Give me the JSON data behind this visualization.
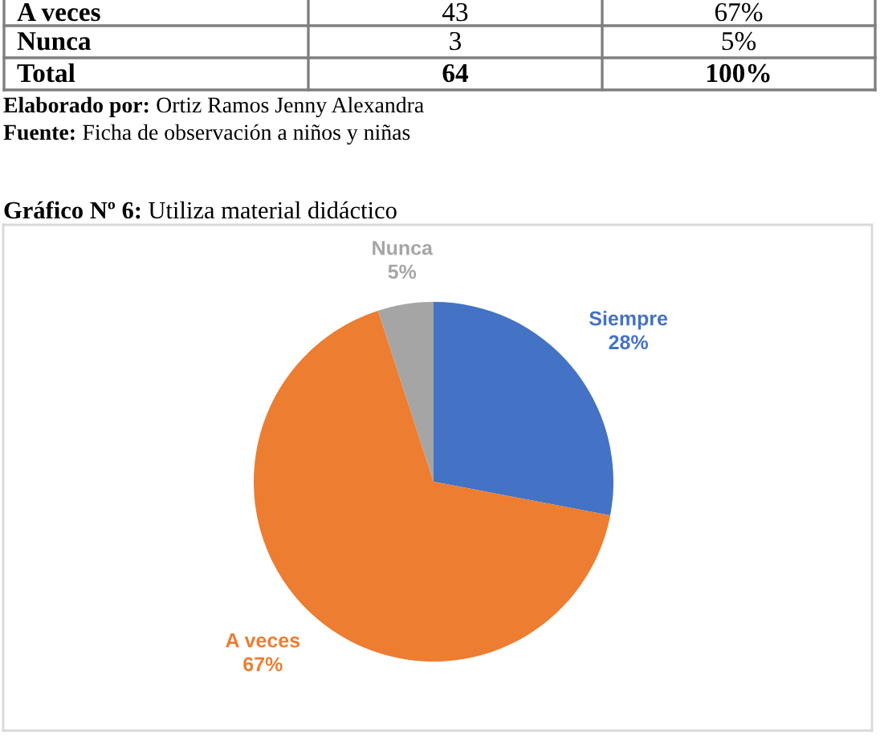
{
  "chart_data": {
    "type": "pie",
    "title": "Gráfico Nº 6: Utiliza material didáctico",
    "categories": [
      "Siempre",
      "A veces",
      "Nunca"
    ],
    "values": [
      28,
      67,
      5
    ],
    "colors": [
      "#4472c4",
      "#ed7d31",
      "#a5a5a5"
    ],
    "value_labels": [
      "28%",
      "67%",
      "5%"
    ],
    "annotations": [
      "A veces",
      "43",
      "67%",
      "Nunca",
      "3",
      "5%",
      "Total",
      "64",
      "100%",
      "Elaborado por: Ortiz Ramos Jenny Alexandra",
      "Fuente: Ficha de observación a niños y niñas"
    ]
  }
}
